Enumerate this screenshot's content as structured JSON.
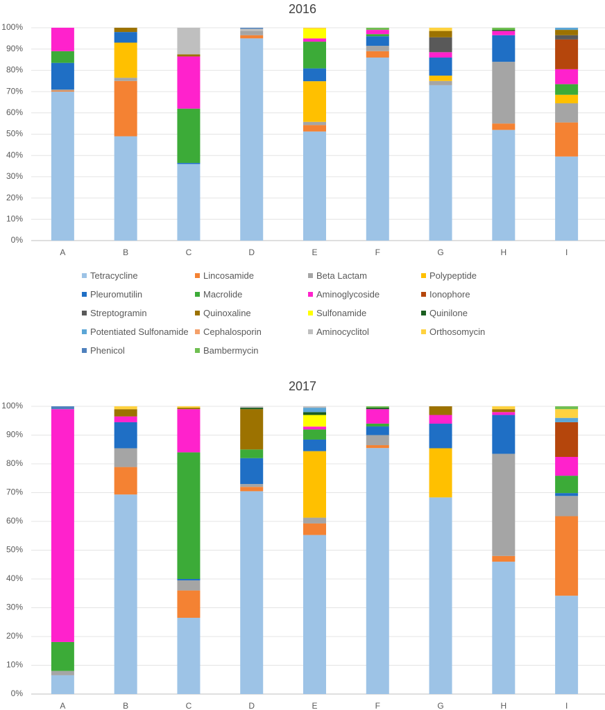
{
  "categories_legend": [
    {
      "name": "Tetracycline",
      "color": "#9dc3e6"
    },
    {
      "name": "Lincosamide",
      "color": "#f48233"
    },
    {
      "name": "Beta Lactam",
      "color": "#a5a5a5"
    },
    {
      "name": "Polypeptide",
      "color": "#ffc000"
    },
    {
      "name": "Pleuromutilin",
      "color": "#1f6fc5"
    },
    {
      "name": "Macrolide",
      "color": "#3cab38"
    },
    {
      "name": "Aminoglycoside",
      "color": "#ff22cc"
    },
    {
      "name": "Ionophore",
      "color": "#b5460c"
    },
    {
      "name": "Streptogramin",
      "color": "#595959"
    },
    {
      "name": "Quinoxaline",
      "color": "#9c7200"
    },
    {
      "name": "Sulfonamide",
      "color": "#ffff00"
    },
    {
      "name": "Quinilone",
      "color": "#1b5e20"
    },
    {
      "name": "Potentiated Sulfonamide",
      "color": "#5ba6d6"
    },
    {
      "name": "Cephalosporin",
      "color": "#f4a06a"
    },
    {
      "name": "Aminocyclitol",
      "color": "#bfbfbf"
    },
    {
      "name": "Orthosomycin",
      "color": "#ffd23f"
    },
    {
      "name": "Phenicol",
      "color": "#4f81bd"
    },
    {
      "name": "Bambermycin",
      "color": "#70bf52"
    }
  ],
  "chart_data": [
    {
      "type": "bar",
      "stacked": "percent",
      "title": "2016",
      "categories": [
        "A",
        "B",
        "C",
        "D",
        "E",
        "F",
        "G",
        "H",
        "I"
      ],
      "yticks": [
        "0%",
        "10%",
        "20%",
        "30%",
        "40%",
        "50%",
        "60%",
        "70%",
        "80%",
        "90%",
        "100%"
      ],
      "ylim": [
        0,
        100
      ],
      "series": [
        {
          "name": "Tetracycline",
          "values": [
            70,
            49,
            36,
            95,
            51,
            86,
            73,
            52,
            39.5
          ]
        },
        {
          "name": "Lincosamide",
          "values": [
            0.5,
            26,
            0,
            1.5,
            3,
            3,
            0,
            3,
            16
          ]
        },
        {
          "name": "Beta Lactam",
          "values": [
            0.5,
            1.5,
            0,
            2,
            1.5,
            2.5,
            2,
            29,
            9
          ]
        },
        {
          "name": "Polypeptide",
          "values": [
            0,
            16.5,
            0,
            0,
            19,
            0,
            2.5,
            0,
            4
          ]
        },
        {
          "name": "Pleuromutilin",
          "values": [
            12.5,
            5,
            0.5,
            0,
            6,
            4.5,
            8.5,
            12.5,
            0
          ]
        },
        {
          "name": "Macrolide",
          "values": [
            5.5,
            0,
            25.5,
            0,
            12.5,
            1,
            0,
            0,
            5
          ]
        },
        {
          "name": "Aminoglycoside",
          "values": [
            11,
            0,
            24.5,
            0,
            1.5,
            2,
            2.5,
            2,
            7
          ]
        },
        {
          "name": "Ionophore",
          "values": [
            0,
            0,
            0,
            0,
            0,
            0,
            0,
            0,
            14
          ]
        },
        {
          "name": "Streptogramin",
          "values": [
            0,
            0,
            0,
            0,
            0,
            0,
            7,
            0,
            2
          ]
        },
        {
          "name": "Quinoxaline",
          "values": [
            0,
            2,
            1,
            0,
            0,
            0,
            3,
            0,
            2.5
          ]
        },
        {
          "name": "Sulfonamide",
          "values": [
            0,
            0,
            0,
            0,
            4.5,
            0,
            0,
            0,
            0
          ]
        },
        {
          "name": "Quinilone",
          "values": [
            0,
            0,
            0,
            0,
            0,
            0,
            0,
            0.5,
            0
          ]
        },
        {
          "name": "Potentiated Sulfonamide",
          "values": [
            0,
            0,
            0,
            0,
            0,
            0,
            0,
            0,
            1
          ]
        },
        {
          "name": "Cephalosporin",
          "values": [
            0,
            0,
            0,
            0,
            0,
            0,
            0,
            0,
            0
          ]
        },
        {
          "name": "Aminocyclitol",
          "values": [
            0,
            0,
            12.5,
            1,
            0,
            0,
            0,
            0,
            0
          ]
        },
        {
          "name": "Orthosomycin",
          "values": [
            0,
            0,
            0,
            0,
            0.5,
            0,
            1.5,
            0,
            0
          ]
        },
        {
          "name": "Phenicol",
          "values": [
            0,
            0,
            0,
            0.5,
            0,
            0,
            0,
            0,
            0
          ]
        },
        {
          "name": "Bambermycin",
          "values": [
            0,
            0,
            0,
            0,
            0,
            1,
            0,
            1,
            0
          ]
        }
      ]
    },
    {
      "type": "bar",
      "stacked": "percent",
      "title": "2017",
      "categories": [
        "A",
        "B",
        "C",
        "D",
        "E",
        "F",
        "G",
        "H",
        "I"
      ],
      "yticks": [
        "0%",
        "10%",
        "20%",
        "30%",
        "40%",
        "50%",
        "60%",
        "70%",
        "80%",
        "90%",
        "100%"
      ],
      "ylim": [
        0,
        100
      ],
      "series": [
        {
          "name": "Tetracycline",
          "values": [
            6.5,
            69,
            26.5,
            70.5,
            55,
            85.5,
            68,
            46,
            34
          ]
        },
        {
          "name": "Lincosamide",
          "values": [
            0,
            9.5,
            9.5,
            1.5,
            4,
            1,
            0,
            2,
            27.5
          ]
        },
        {
          "name": "Beta Lactam",
          "values": [
            1.5,
            6.5,
            3.5,
            1,
            2,
            3.5,
            0,
            35.5,
            7
          ]
        },
        {
          "name": "Polypeptide",
          "values": [
            0,
            0,
            0,
            0,
            23,
            0,
            17,
            0,
            0
          ]
        },
        {
          "name": "Pleuromutilin",
          "values": [
            0,
            9,
            0.5,
            9,
            4,
            3,
            8.5,
            13.5,
            1
          ]
        },
        {
          "name": "Macrolide",
          "values": [
            10,
            0,
            44,
            3,
            3.5,
            1,
            0,
            0,
            6
          ]
        },
        {
          "name": "Aminoglycoside",
          "values": [
            80.5,
            2,
            15,
            0,
            1,
            5,
            3,
            1,
            6.5
          ]
        },
        {
          "name": "Ionophore",
          "values": [
            0,
            0,
            0,
            0,
            0,
            0,
            0,
            0,
            12
          ]
        },
        {
          "name": "Streptogramin",
          "values": [
            0,
            0,
            0,
            0,
            0,
            0,
            0,
            0,
            0
          ]
        },
        {
          "name": "Quinoxaline",
          "values": [
            0,
            2.5,
            0.5,
            14,
            0,
            0,
            3,
            1,
            0
          ]
        },
        {
          "name": "Sulfonamide",
          "values": [
            0,
            0,
            0,
            0,
            4,
            0,
            0,
            0,
            0
          ]
        },
        {
          "name": "Quinilone",
          "values": [
            0,
            0,
            0,
            0.5,
            1,
            0.5,
            0,
            0,
            0
          ]
        },
        {
          "name": "Potentiated Sulfonamide",
          "values": [
            0,
            0,
            0,
            0,
            1.5,
            0,
            0,
            0,
            1.5
          ]
        },
        {
          "name": "Cephalosporin",
          "values": [
            0,
            0,
            0,
            0,
            0,
            0,
            0,
            0,
            0
          ]
        },
        {
          "name": "Aminocyclitol",
          "values": [
            0,
            0,
            0,
            0.5,
            0.5,
            0,
            0,
            0,
            0
          ]
        },
        {
          "name": "Orthosomycin",
          "values": [
            0,
            1,
            0.5,
            0,
            0,
            0,
            0,
            1,
            3
          ]
        },
        {
          "name": "Phenicol",
          "values": [
            1,
            0,
            0,
            0,
            0,
            0,
            0,
            0,
            0
          ]
        },
        {
          "name": "Bambermycin",
          "values": [
            0,
            0,
            0,
            0,
            0,
            0.5,
            0,
            0,
            1
          ]
        }
      ]
    }
  ]
}
